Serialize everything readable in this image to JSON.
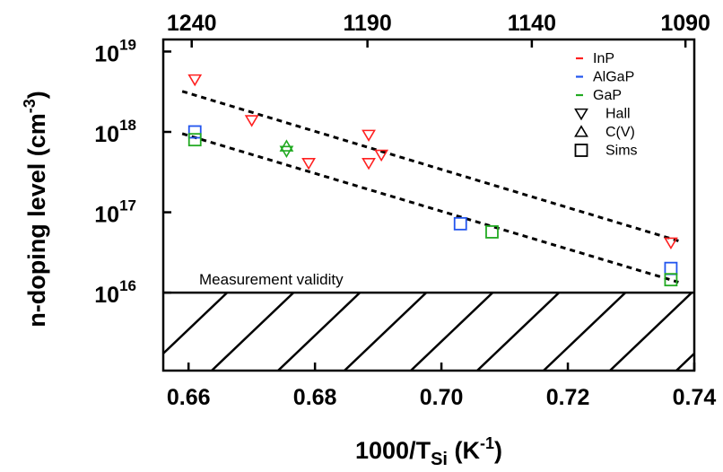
{
  "chart_data": {
    "type": "scatter",
    "title": "",
    "xlabel": {
      "base": "1000/T",
      "sub": "Si",
      "unit_pre": " (K",
      "unit_exp": "-1",
      "unit_post": ")"
    },
    "ylabel": {
      "base": "n-doping level (cm",
      "exp": "-3",
      "post": ")"
    },
    "xlim": [
      0.656,
      0.74
    ],
    "ylim_log10": [
      15.03,
      19.15
    ],
    "x_ticks": [
      {
        "value": 0.66,
        "label": "0.66"
      },
      {
        "value": 0.68,
        "label": "0.68"
      },
      {
        "value": 0.7,
        "label": "0.70"
      },
      {
        "value": 0.72,
        "label": "0.72"
      },
      {
        "value": 0.74,
        "label": "0.74"
      }
    ],
    "y_ticks": [
      {
        "log": 16,
        "base": "10",
        "exp": "16"
      },
      {
        "log": 17,
        "base": "10",
        "exp": "17"
      },
      {
        "log": 18,
        "base": "10",
        "exp": "18"
      },
      {
        "log": 19,
        "base": "10",
        "exp": "19"
      }
    ],
    "top_ticks": [
      {
        "x": 0.6605,
        "label": "1240"
      },
      {
        "x": 0.6883,
        "label": "1190"
      },
      {
        "x": 0.7143,
        "label": "1140"
      },
      {
        "x": 0.7386,
        "label": "1090"
      }
    ],
    "colors": {
      "InP": "#ff2020",
      "AlGaP": "#2255ee",
      "GaP": "#22aa22"
    },
    "legend": {
      "placement": "top-right",
      "materials": [
        {
          "label": "InP",
          "color": "#ff2020"
        },
        {
          "label": "AlGaP",
          "color": "#2255ee"
        },
        {
          "label": "GaP",
          "color": "#22aa22"
        }
      ],
      "methods": [
        {
          "label": "Hall",
          "marker": "triangle-down"
        },
        {
          "label": "C(V)",
          "marker": "triangle-up"
        },
        {
          "label": "Sims",
          "marker": "square"
        }
      ]
    },
    "series": [
      {
        "material": "InP",
        "marker": "triangle-down",
        "points": [
          {
            "x": 0.661,
            "y": 4.5e+18
          },
          {
            "x": 0.67,
            "y": 1.4e+18
          },
          {
            "x": 0.679,
            "y": 4.1e+17
          },
          {
            "x": 0.6885,
            "y": 9.2e+17
          },
          {
            "x": 0.6885,
            "y": 4.1e+17
          },
          {
            "x": 0.6905,
            "y": 5.2e+17
          },
          {
            "x": 0.7363,
            "y": 4.2e+16
          }
        ]
      },
      {
        "material": "GaP",
        "marker": "triangle-up",
        "points": [
          {
            "x": 0.6755,
            "y": 6.6e+17
          }
        ]
      },
      {
        "material": "GaP",
        "marker": "triangle-down",
        "points": [
          {
            "x": 0.6755,
            "y": 5.8e+17
          }
        ]
      },
      {
        "material": "AlGaP",
        "marker": "square",
        "points": [
          {
            "x": 0.661,
            "y": 1e+18
          },
          {
            "x": 0.703,
            "y": 7.2e+16
          },
          {
            "x": 0.7363,
            "y": 2e+16
          }
        ]
      },
      {
        "material": "GaP",
        "marker": "square",
        "points": [
          {
            "x": 0.661,
            "y": 8e+17
          },
          {
            "x": 0.708,
            "y": 5.7e+16
          },
          {
            "x": 0.7363,
            "y": 1.45e+16
          }
        ]
      }
    ],
    "fit_lines": [
      {
        "x": [
          0.659,
          0.7375
        ],
        "y": [
          3.2e+18,
          4.4e+16
        ],
        "style": "dashed"
      },
      {
        "x": [
          0.659,
          0.7375
        ],
        "y": [
          9.5e+17,
          1.35e+16
        ],
        "style": "dashed"
      }
    ],
    "annotation": {
      "text": "Measurement validity",
      "boundary_y": 1e+16,
      "hatched_below": true
    },
    "grid": false
  }
}
